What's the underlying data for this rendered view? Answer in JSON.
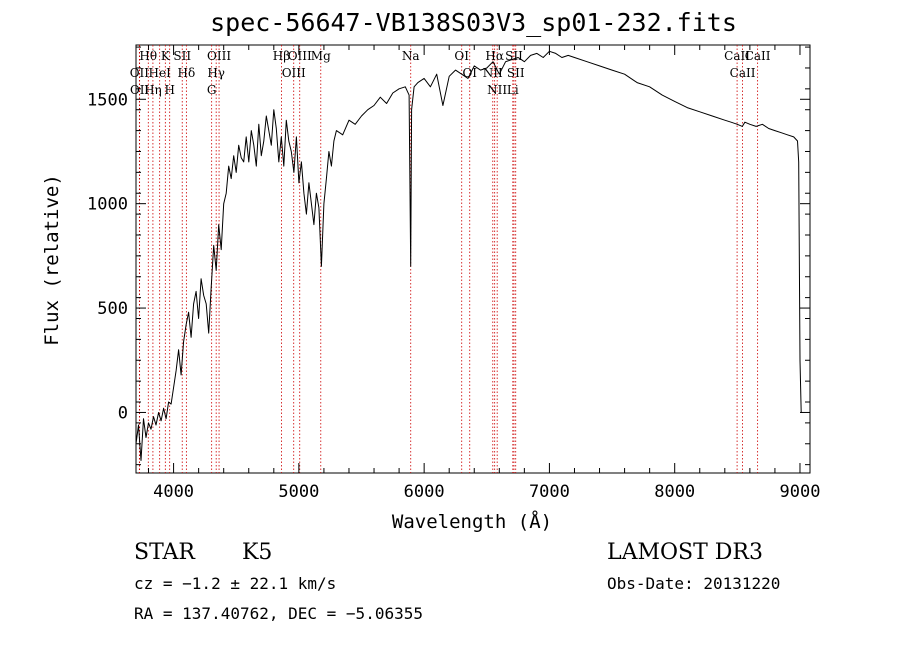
{
  "chart_data": {
    "type": "line",
    "title": "spec-56647-VB138S03V3_sp01-232.fits",
    "xlabel": "Wavelength (Å)",
    "ylabel": "Flux (relative)",
    "xlim": [
      3700,
      9080
    ],
    "ylim": [
      -290,
      1760
    ],
    "x_ticks": [
      4000,
      5000,
      6000,
      7000,
      8000,
      9000
    ],
    "y_ticks": [
      0,
      500,
      1000,
      1500
    ],
    "series": [
      {
        "name": "flux",
        "x": [
          3700,
          3720,
          3740,
          3760,
          3780,
          3800,
          3820,
          3840,
          3860,
          3880,
          3900,
          3920,
          3940,
          3960,
          3980,
          4000,
          4020,
          4040,
          4060,
          4080,
          4100,
          4120,
          4140,
          4160,
          4180,
          4200,
          4220,
          4240,
          4260,
          4280,
          4300,
          4320,
          4340,
          4360,
          4380,
          4400,
          4420,
          4440,
          4460,
          4480,
          4500,
          4520,
          4540,
          4560,
          4580,
          4600,
          4620,
          4640,
          4660,
          4680,
          4700,
          4720,
          4740,
          4760,
          4780,
          4800,
          4820,
          4840,
          4860,
          4880,
          4900,
          4920,
          4940,
          4960,
          4980,
          5000,
          5020,
          5040,
          5060,
          5080,
          5100,
          5120,
          5140,
          5160,
          5180,
          5200,
          5220,
          5240,
          5260,
          5280,
          5300,
          5350,
          5400,
          5450,
          5500,
          5550,
          5600,
          5650,
          5700,
          5750,
          5800,
          5850,
          5880,
          5893,
          5900,
          5920,
          5950,
          6000,
          6050,
          6100,
          6150,
          6200,
          6250,
          6300,
          6350,
          6400,
          6450,
          6500,
          6550,
          6600,
          6650,
          6700,
          6750,
          6800,
          6850,
          6900,
          6950,
          7000,
          7050,
          7100,
          7150,
          7200,
          7300,
          7400,
          7500,
          7600,
          7700,
          7800,
          7900,
          8000,
          8100,
          8200,
          8300,
          8400,
          8450,
          8500,
          8540,
          8560,
          8600,
          8650,
          8700,
          8750,
          8800,
          8850,
          8900,
          8950,
          8980,
          8990,
          9000,
          9010,
          9020
        ],
        "values": [
          -150,
          -60,
          -230,
          -30,
          -120,
          -50,
          -80,
          -20,
          -60,
          0,
          -40,
          20,
          -30,
          50,
          40,
          120,
          200,
          300,
          180,
          340,
          420,
          480,
          360,
          520,
          580,
          450,
          640,
          560,
          520,
          380,
          600,
          800,
          680,
          900,
          780,
          1000,
          1050,
          1180,
          1120,
          1230,
          1150,
          1280,
          1220,
          1200,
          1320,
          1200,
          1350,
          1280,
          1180,
          1380,
          1230,
          1300,
          1420,
          1350,
          1280,
          1450,
          1360,
          1200,
          1320,
          1180,
          1400,
          1300,
          1250,
          1150,
          1320,
          1100,
          1200,
          1050,
          950,
          1100,
          1000,
          900,
          1050,
          980,
          700,
          1000,
          1120,
          1250,
          1180,
          1300,
          1350,
          1330,
          1400,
          1380,
          1420,
          1450,
          1470,
          1510,
          1480,
          1530,
          1550,
          1560,
          1520,
          700,
          1450,
          1560,
          1580,
          1600,
          1560,
          1620,
          1470,
          1610,
          1640,
          1620,
          1600,
          1660,
          1640,
          1650,
          1680,
          1620,
          1680,
          1690,
          1700,
          1680,
          1710,
          1720,
          1700,
          1730,
          1720,
          1700,
          1710,
          1700,
          1680,
          1660,
          1640,
          1620,
          1580,
          1560,
          1520,
          1490,
          1460,
          1440,
          1420,
          1400,
          1390,
          1380,
          1370,
          1390,
          1380,
          1370,
          1380,
          1360,
          1350,
          1340,
          1330,
          1320,
          1300,
          1200,
          250,
          0,
          0
        ]
      }
    ],
    "lines": [
      {
        "label": "Hθ",
        "wl": 3798
      },
      {
        "label": "OII",
        "wl": 3727
      },
      {
        "label": "OII",
        "wl": 3729
      },
      {
        "label": "K",
        "wl": 3934
      },
      {
        "label": "Hη",
        "wl": 3835
      },
      {
        "label": "HeI",
        "wl": 3889
      },
      {
        "label": "SII",
        "wl": 4069
      },
      {
        "label": "H",
        "wl": 3969
      },
      {
        "label": "Hδ",
        "wl": 4102
      },
      {
        "label": "OIII",
        "wl": 4363
      },
      {
        "label": "Hγ",
        "wl": 4340
      },
      {
        "label": "G",
        "wl": 4304
      },
      {
        "label": "Hβ",
        "wl": 4861
      },
      {
        "label": "OIII",
        "wl": 4959
      },
      {
        "label": "OIII",
        "wl": 5007
      },
      {
        "label": "Mg",
        "wl": 5175
      },
      {
        "label": "Na",
        "wl": 5893
      },
      {
        "label": "OI",
        "wl": 6300
      },
      {
        "label": "OI",
        "wl": 6364
      },
      {
        "label": "Hα",
        "wl": 6563
      },
      {
        "label": "NII",
        "wl": 6548
      },
      {
        "label": "NII",
        "wl": 6583
      },
      {
        "label": "SII",
        "wl": 6717
      },
      {
        "label": "SII",
        "wl": 6731
      },
      {
        "label": "Li",
        "wl": 6708
      },
      {
        "label": "CaII",
        "wl": 8498
      },
      {
        "label": "CaII",
        "wl": 8542
      },
      {
        "label": "CaII",
        "wl": 8662
      }
    ]
  },
  "info": {
    "class": "STAR",
    "subclass": "K5",
    "cz": "cz = −1.2 ± 22.1 km/s",
    "radec": "RA = 137.40762, DEC =  −5.06355",
    "survey": "LAMOST DR3",
    "obsdate": "Obs-Date: 20131220"
  }
}
